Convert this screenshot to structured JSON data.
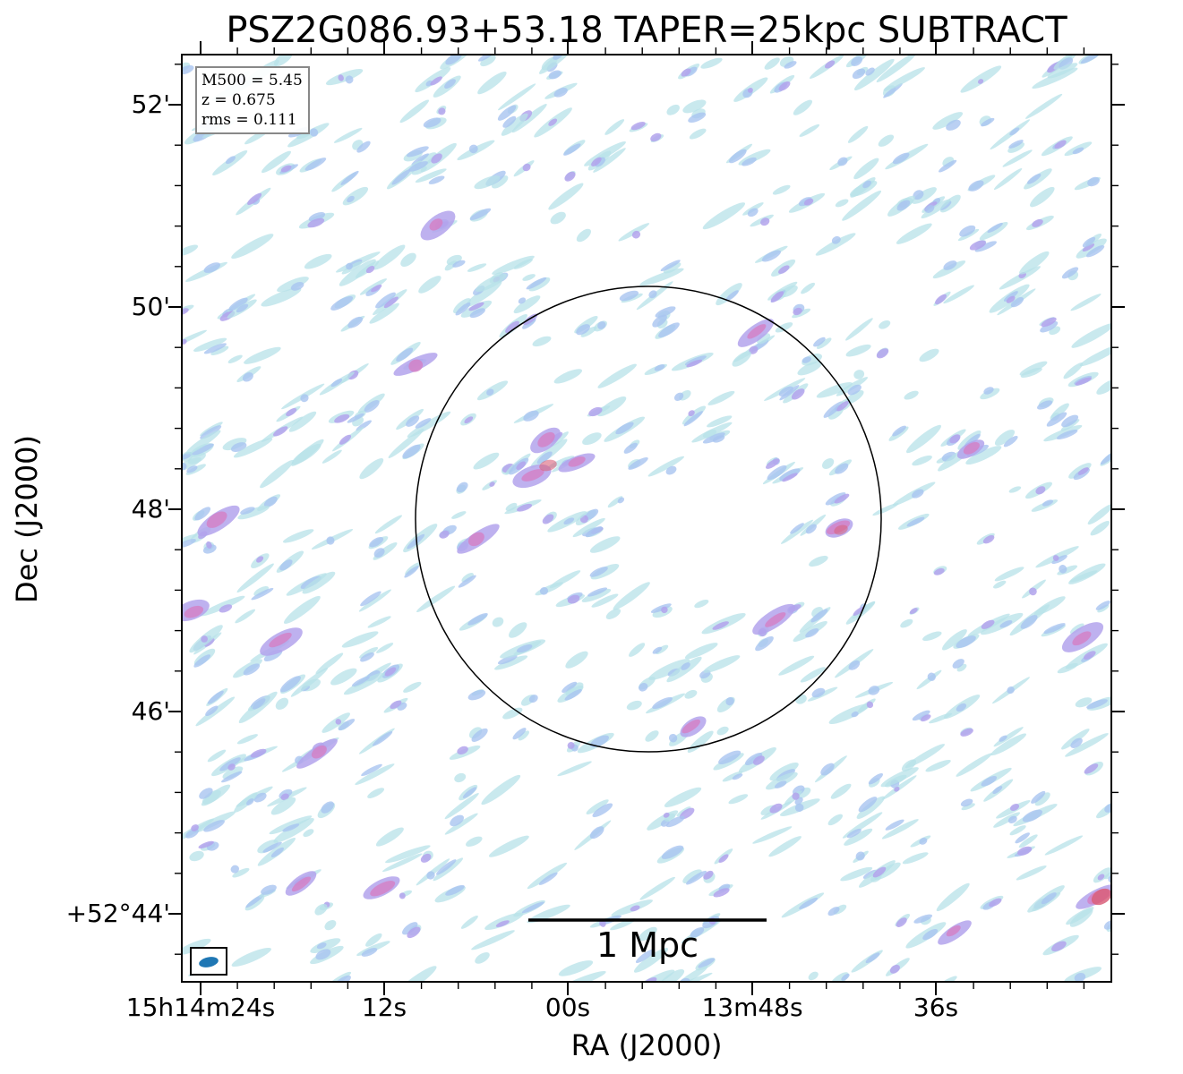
{
  "title": "PSZ2G086.93+53.18 TAPER=25kpc SUBTRACT",
  "legend": {
    "m500": "M500 = 5.45",
    "z": "z = 0.675",
    "rms": "rms = 0.111"
  },
  "scalebar_label": "1 Mpc",
  "axes": {
    "xlabel": "RA (J2000)",
    "ylabel": "Dec (J2000)",
    "xticks": [
      "15h14m24s",
      "12s",
      "00s",
      "13m48s",
      "36s"
    ],
    "yticks": [
      "52'",
      "50'",
      "48'",
      "46'",
      "+52°44'"
    ]
  },
  "colors": {
    "faint": "#b7e2e8",
    "low": "#a9c4f0",
    "mid": "#b3a3ec",
    "high": "#d57fc4",
    "peak": "#d9607a",
    "circle": "#000000",
    "beam": "#1f77b4"
  },
  "overlays": {
    "circle": "cluster region",
    "beam": "beam ellipse"
  }
}
